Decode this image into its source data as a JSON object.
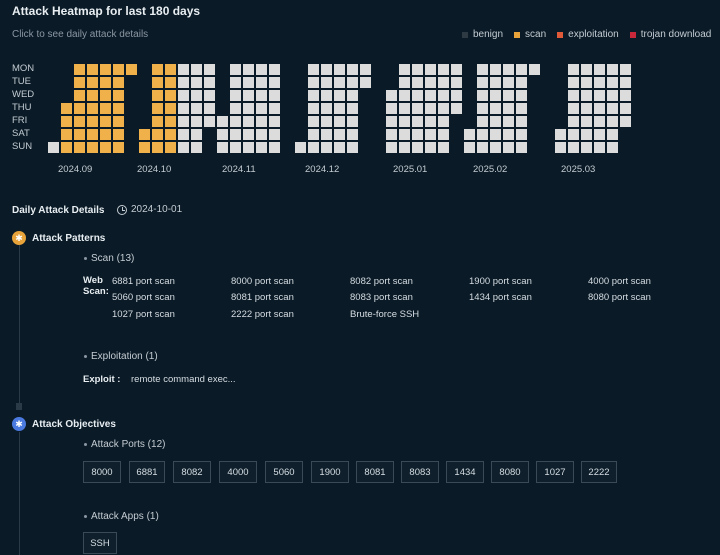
{
  "header": {
    "title": "Attack Heatmap for last 180 days",
    "subtitle": "Click to see daily attack details"
  },
  "legend": [
    {
      "label": "benign",
      "color": "#2d3a44"
    },
    {
      "label": "scan",
      "color": "#e8a33a"
    },
    {
      "label": "exploitation",
      "color": "#e05a3a"
    },
    {
      "label": "trojan download",
      "color": "#c8283a"
    }
  ],
  "heatmap": {
    "days": [
      "MON",
      "TUE",
      "WED",
      "THU",
      "FRI",
      "SAT",
      "SUN"
    ],
    "months": [
      "2024.09",
      "2024.10",
      "2024.11",
      "2024.12",
      "2025.01",
      "2025.02",
      "2025.03"
    ],
    "colors": {
      "empty": "#dcdcdc",
      "scan": "#f0b04a",
      "exploitation": "#e8624a"
    }
  },
  "details": {
    "title": "Daily Attack Details",
    "date": "2024-10-01"
  },
  "patterns": {
    "title": "Attack Patterns",
    "scan_group": {
      "title": "Scan (13)",
      "category": "Web Scan:",
      "items": [
        "6881 port scan",
        "8000 port scan",
        "8082 port scan",
        "1900 port scan",
        "4000 port scan",
        "5060 port scan",
        "8081 port scan",
        "8083 port scan",
        "1434 port scan",
        "8080 port scan",
        "1027 port scan",
        "2222 port scan",
        "Brute-force SSH"
      ]
    },
    "exploit_group": {
      "title": "Exploitation (1)",
      "category": "Exploit :",
      "items": [
        "remote command exec..."
      ]
    }
  },
  "objectives": {
    "title": "Attack Objectives",
    "ports_group": {
      "title": "Attack Ports (12)",
      "ports": [
        "8000",
        "6881",
        "8082",
        "4000",
        "5060",
        "1900",
        "8081",
        "8083",
        "1434",
        "8080",
        "1027",
        "2222"
      ]
    },
    "apps_group": {
      "title": "Attack Apps (1)",
      "apps": [
        "SSH"
      ]
    }
  }
}
